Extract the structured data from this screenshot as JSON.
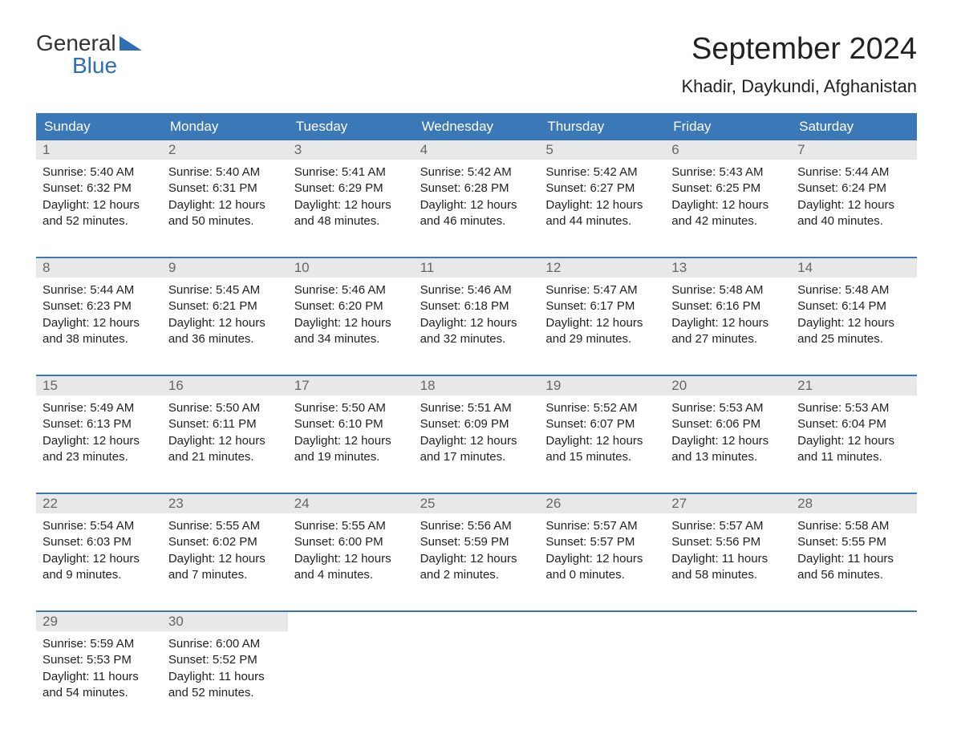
{
  "logo": {
    "line1": "General",
    "line2": "Blue"
  },
  "title": "September 2024",
  "location": "Khadir, Daykundi, Afghanistan",
  "day_names": [
    "Sunday",
    "Monday",
    "Tuesday",
    "Wednesday",
    "Thursday",
    "Friday",
    "Saturday"
  ],
  "colors": {
    "header_bg": "#3b78b8",
    "header_text": "#ffffff",
    "day_num_bg": "#e8e8e8",
    "day_num_text": "#666666",
    "body_text": "#222222",
    "logo_blue": "#2d6eb5",
    "week_border": "#3b78b8"
  },
  "weeks": [
    [
      {
        "num": "1",
        "sunrise": "Sunrise: 5:40 AM",
        "sunset": "Sunset: 6:32 PM",
        "daylight1": "Daylight: 12 hours",
        "daylight2": "and 52 minutes."
      },
      {
        "num": "2",
        "sunrise": "Sunrise: 5:40 AM",
        "sunset": "Sunset: 6:31 PM",
        "daylight1": "Daylight: 12 hours",
        "daylight2": "and 50 minutes."
      },
      {
        "num": "3",
        "sunrise": "Sunrise: 5:41 AM",
        "sunset": "Sunset: 6:29 PM",
        "daylight1": "Daylight: 12 hours",
        "daylight2": "and 48 minutes."
      },
      {
        "num": "4",
        "sunrise": "Sunrise: 5:42 AM",
        "sunset": "Sunset: 6:28 PM",
        "daylight1": "Daylight: 12 hours",
        "daylight2": "and 46 minutes."
      },
      {
        "num": "5",
        "sunrise": "Sunrise: 5:42 AM",
        "sunset": "Sunset: 6:27 PM",
        "daylight1": "Daylight: 12 hours",
        "daylight2": "and 44 minutes."
      },
      {
        "num": "6",
        "sunrise": "Sunrise: 5:43 AM",
        "sunset": "Sunset: 6:25 PM",
        "daylight1": "Daylight: 12 hours",
        "daylight2": "and 42 minutes."
      },
      {
        "num": "7",
        "sunrise": "Sunrise: 5:44 AM",
        "sunset": "Sunset: 6:24 PM",
        "daylight1": "Daylight: 12 hours",
        "daylight2": "and 40 minutes."
      }
    ],
    [
      {
        "num": "8",
        "sunrise": "Sunrise: 5:44 AM",
        "sunset": "Sunset: 6:23 PM",
        "daylight1": "Daylight: 12 hours",
        "daylight2": "and 38 minutes."
      },
      {
        "num": "9",
        "sunrise": "Sunrise: 5:45 AM",
        "sunset": "Sunset: 6:21 PM",
        "daylight1": "Daylight: 12 hours",
        "daylight2": "and 36 minutes."
      },
      {
        "num": "10",
        "sunrise": "Sunrise: 5:46 AM",
        "sunset": "Sunset: 6:20 PM",
        "daylight1": "Daylight: 12 hours",
        "daylight2": "and 34 minutes."
      },
      {
        "num": "11",
        "sunrise": "Sunrise: 5:46 AM",
        "sunset": "Sunset: 6:18 PM",
        "daylight1": "Daylight: 12 hours",
        "daylight2": "and 32 minutes."
      },
      {
        "num": "12",
        "sunrise": "Sunrise: 5:47 AM",
        "sunset": "Sunset: 6:17 PM",
        "daylight1": "Daylight: 12 hours",
        "daylight2": "and 29 minutes."
      },
      {
        "num": "13",
        "sunrise": "Sunrise: 5:48 AM",
        "sunset": "Sunset: 6:16 PM",
        "daylight1": "Daylight: 12 hours",
        "daylight2": "and 27 minutes."
      },
      {
        "num": "14",
        "sunrise": "Sunrise: 5:48 AM",
        "sunset": "Sunset: 6:14 PM",
        "daylight1": "Daylight: 12 hours",
        "daylight2": "and 25 minutes."
      }
    ],
    [
      {
        "num": "15",
        "sunrise": "Sunrise: 5:49 AM",
        "sunset": "Sunset: 6:13 PM",
        "daylight1": "Daylight: 12 hours",
        "daylight2": "and 23 minutes."
      },
      {
        "num": "16",
        "sunrise": "Sunrise: 5:50 AM",
        "sunset": "Sunset: 6:11 PM",
        "daylight1": "Daylight: 12 hours",
        "daylight2": "and 21 minutes."
      },
      {
        "num": "17",
        "sunrise": "Sunrise: 5:50 AM",
        "sunset": "Sunset: 6:10 PM",
        "daylight1": "Daylight: 12 hours",
        "daylight2": "and 19 minutes."
      },
      {
        "num": "18",
        "sunrise": "Sunrise: 5:51 AM",
        "sunset": "Sunset: 6:09 PM",
        "daylight1": "Daylight: 12 hours",
        "daylight2": "and 17 minutes."
      },
      {
        "num": "19",
        "sunrise": "Sunrise: 5:52 AM",
        "sunset": "Sunset: 6:07 PM",
        "daylight1": "Daylight: 12 hours",
        "daylight2": "and 15 minutes."
      },
      {
        "num": "20",
        "sunrise": "Sunrise: 5:53 AM",
        "sunset": "Sunset: 6:06 PM",
        "daylight1": "Daylight: 12 hours",
        "daylight2": "and 13 minutes."
      },
      {
        "num": "21",
        "sunrise": "Sunrise: 5:53 AM",
        "sunset": "Sunset: 6:04 PM",
        "daylight1": "Daylight: 12 hours",
        "daylight2": "and 11 minutes."
      }
    ],
    [
      {
        "num": "22",
        "sunrise": "Sunrise: 5:54 AM",
        "sunset": "Sunset: 6:03 PM",
        "daylight1": "Daylight: 12 hours",
        "daylight2": "and 9 minutes."
      },
      {
        "num": "23",
        "sunrise": "Sunrise: 5:55 AM",
        "sunset": "Sunset: 6:02 PM",
        "daylight1": "Daylight: 12 hours",
        "daylight2": "and 7 minutes."
      },
      {
        "num": "24",
        "sunrise": "Sunrise: 5:55 AM",
        "sunset": "Sunset: 6:00 PM",
        "daylight1": "Daylight: 12 hours",
        "daylight2": "and 4 minutes."
      },
      {
        "num": "25",
        "sunrise": "Sunrise: 5:56 AM",
        "sunset": "Sunset: 5:59 PM",
        "daylight1": "Daylight: 12 hours",
        "daylight2": "and 2 minutes."
      },
      {
        "num": "26",
        "sunrise": "Sunrise: 5:57 AM",
        "sunset": "Sunset: 5:57 PM",
        "daylight1": "Daylight: 12 hours",
        "daylight2": "and 0 minutes."
      },
      {
        "num": "27",
        "sunrise": "Sunrise: 5:57 AM",
        "sunset": "Sunset: 5:56 PM",
        "daylight1": "Daylight: 11 hours",
        "daylight2": "and 58 minutes."
      },
      {
        "num": "28",
        "sunrise": "Sunrise: 5:58 AM",
        "sunset": "Sunset: 5:55 PM",
        "daylight1": "Daylight: 11 hours",
        "daylight2": "and 56 minutes."
      }
    ],
    [
      {
        "num": "29",
        "sunrise": "Sunrise: 5:59 AM",
        "sunset": "Sunset: 5:53 PM",
        "daylight1": "Daylight: 11 hours",
        "daylight2": "and 54 minutes."
      },
      {
        "num": "30",
        "sunrise": "Sunrise: 6:00 AM",
        "sunset": "Sunset: 5:52 PM",
        "daylight1": "Daylight: 11 hours",
        "daylight2": "and 52 minutes."
      },
      null,
      null,
      null,
      null,
      null
    ]
  ]
}
